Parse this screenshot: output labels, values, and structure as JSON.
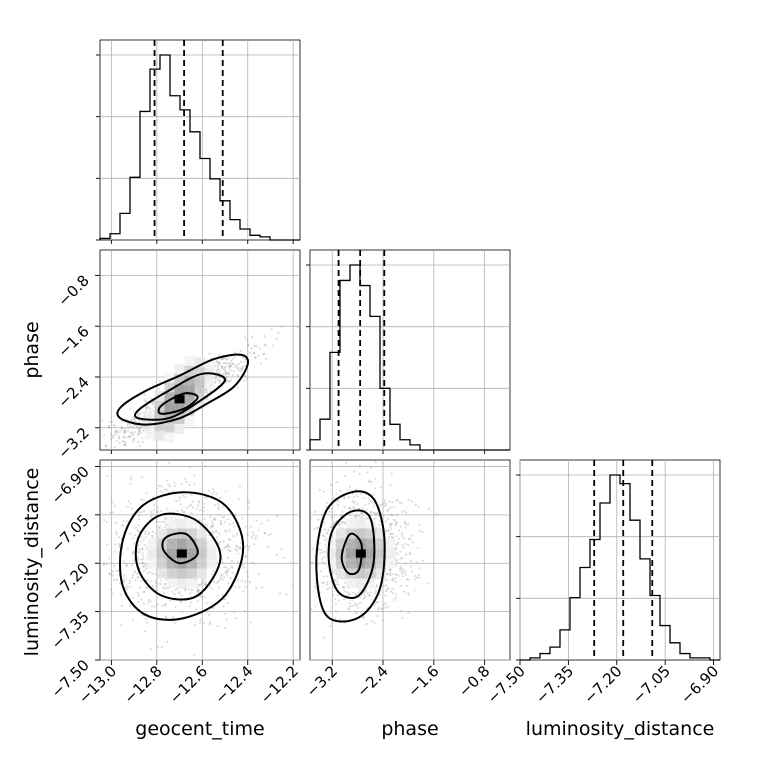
{
  "chart_data": {
    "type": "corner",
    "parameters": [
      "geocent_time",
      "phase",
      "luminosity_distance"
    ],
    "diagonal": [
      {
        "parameter": "geocent_time",
        "range": [
          -13.05,
          -12.17
        ],
        "bin_edges": [
          -13.05,
          -13.006,
          -12.962,
          -12.918,
          -12.874,
          -12.83,
          -12.786,
          -12.742,
          -12.698,
          -12.654,
          -12.61,
          -12.566,
          -12.522,
          -12.478,
          -12.434,
          -12.39,
          -12.346,
          -12.302,
          -12.258,
          -12.214,
          -12.17
        ],
        "counts": [
          1,
          4,
          17,
          40,
          82,
          109,
          118,
          92,
          83,
          69,
          52,
          39,
          25,
          13,
          7,
          3,
          2,
          0,
          0,
          0
        ],
        "quantiles": [
          -12.81,
          -12.68,
          -12.51
        ]
      },
      {
        "parameter": "phase",
        "range": [
          -3.55,
          -0.4
        ],
        "bin_edges": [
          -3.55,
          -3.3925,
          -3.235,
          -3.0775,
          -2.92,
          -2.7625,
          -2.605,
          -2.4475,
          -2.29,
          -2.1325,
          -1.975,
          -1.8175,
          -1.66,
          -1.5025,
          -1.345,
          -1.1875,
          -1.03,
          -0.8725,
          -0.715,
          -0.5575,
          -0.4
        ],
        "counts": [
          2,
          6,
          19,
          33,
          36,
          32,
          26,
          12,
          5,
          2,
          1,
          0,
          0,
          0,
          0,
          0,
          0,
          0,
          0,
          0
        ],
        "quantiles": [
          -3.1,
          -2.76,
          -2.38
        ]
      },
      {
        "parameter": "luminosity_distance",
        "range": [
          -7.5,
          -6.88
        ],
        "bin_edges": [
          -7.5,
          -7.469,
          -7.438,
          -7.407,
          -7.376,
          -7.345,
          -7.314,
          -7.283,
          -7.252,
          -7.221,
          -7.19,
          -7.159,
          -7.128,
          -7.097,
          -7.066,
          -7.035,
          -7.004,
          -6.973,
          -6.942,
          -6.911,
          -6.88
        ],
        "counts": [
          0,
          1,
          3,
          6,
          14,
          29,
          43,
          56,
          73,
          86,
          82,
          65,
          47,
          30,
          16,
          8,
          3,
          1,
          1,
          0
        ],
        "quantiles": [
          -7.27,
          -7.18,
          -7.09
        ]
      }
    ],
    "panels_2d": [
      {
        "x": "geocent_time",
        "y": "phase",
        "xlim": [
          -13.05,
          -12.17
        ],
        "ylim": [
          -3.55,
          -0.4
        ],
        "correlation": 0.93,
        "core": [
          -12.7,
          -2.75
        ],
        "contours": [
          [
            [
              -12.96,
              -3.05
            ],
            [
              -12.85,
              -3.15
            ],
            [
              -12.7,
              -3.05
            ],
            [
              -12.58,
              -2.82
            ],
            [
              -12.46,
              -2.55
            ],
            [
              -12.4,
              -2.2
            ],
            [
              -12.43,
              -2.05
            ],
            [
              -12.55,
              -2.12
            ],
            [
              -12.7,
              -2.38
            ],
            [
              -12.85,
              -2.62
            ],
            [
              -12.96,
              -2.88
            ]
          ],
          [
            [
              -12.88,
              -3.05
            ],
            [
              -12.75,
              -3.05
            ],
            [
              -12.62,
              -2.8
            ],
            [
              -12.5,
              -2.45
            ],
            [
              -12.6,
              -2.35
            ],
            [
              -12.75,
              -2.62
            ],
            [
              -12.88,
              -2.92
            ]
          ],
          [
            [
              -12.78,
              -2.98
            ],
            [
              -12.68,
              -2.9
            ],
            [
              -12.62,
              -2.72
            ],
            [
              -12.68,
              -2.66
            ],
            [
              -12.78,
              -2.85
            ]
          ]
        ]
      },
      {
        "x": "geocent_time",
        "y": "luminosity_distance",
        "xlim": [
          -13.05,
          -12.17
        ],
        "ylim": [
          -7.5,
          -6.88
        ],
        "correlation": 0.0,
        "core": [
          -12.69,
          -7.17
        ],
        "contours": [
          [
            [
              -12.95,
              -7.27
            ],
            [
              -12.85,
              -7.36
            ],
            [
              -12.68,
              -7.37
            ],
            [
              -12.5,
              -7.3
            ],
            [
              -12.42,
              -7.15
            ],
            [
              -12.5,
              -7.02
            ],
            [
              -12.68,
              -6.98
            ],
            [
              -12.86,
              -7.02
            ],
            [
              -12.95,
              -7.13
            ]
          ],
          [
            [
              -12.88,
              -7.22
            ],
            [
              -12.78,
              -7.3
            ],
            [
              -12.62,
              -7.3
            ],
            [
              -12.52,
              -7.18
            ],
            [
              -12.62,
              -7.07
            ],
            [
              -12.78,
              -7.05
            ],
            [
              -12.88,
              -7.12
            ]
          ],
          [
            [
              -12.77,
              -7.16
            ],
            [
              -12.7,
              -7.2
            ],
            [
              -12.62,
              -7.17
            ],
            [
              -12.67,
              -7.11
            ],
            [
              -12.76,
              -7.12
            ]
          ]
        ]
      },
      {
        "x": "phase",
        "y": "luminosity_distance",
        "xlim": [
          -3.55,
          -0.4
        ],
        "ylim": [
          -7.5,
          -6.88
        ],
        "correlation": 0.0,
        "core": [
          -2.75,
          -7.17
        ],
        "contours": [
          [
            [
              -3.45,
              -7.2
            ],
            [
              -3.3,
              -7.36
            ],
            [
              -2.8,
              -7.37
            ],
            [
              -2.45,
              -7.28
            ],
            [
              -2.38,
              -7.12
            ],
            [
              -2.55,
              -7.0
            ],
            [
              -2.9,
              -6.98
            ],
            [
              -3.3,
              -7.04
            ]
          ],
          [
            [
              -3.25,
              -7.2
            ],
            [
              -3.1,
              -7.29
            ],
            [
              -2.78,
              -7.3
            ],
            [
              -2.55,
              -7.2
            ],
            [
              -2.6,
              -7.06
            ],
            [
              -2.9,
              -7.04
            ],
            [
              -3.2,
              -7.1
            ]
          ],
          [
            [
              -3.05,
              -7.18
            ],
            [
              -2.95,
              -7.23
            ],
            [
              -2.78,
              -7.22
            ],
            [
              -2.74,
              -7.14
            ],
            [
              -2.92,
              -7.11
            ]
          ]
        ]
      }
    ],
    "x_ticks": {
      "geocent_time": [
        "−13.0",
        "−12.8",
        "−12.6",
        "−12.4",
        "−12.2"
      ],
      "phase": [
        "−3.2",
        "−2.4",
        "−1.6",
        "−0.8"
      ],
      "luminosity_distance": [
        "−7.50",
        "−7.35",
        "−7.20",
        "−7.05",
        "−6.90"
      ]
    },
    "y_ticks": {
      "phase": [
        "−0.8",
        "−1.6",
        "−2.4",
        "−3.2"
      ],
      "luminosity_distance": [
        "−6.90",
        "−7.05",
        "−7.20",
        "−7.35",
        "−7.50"
      ]
    },
    "x_tick_values": {
      "geocent_time": [
        -13.0,
        -12.8,
        -12.6,
        -12.4,
        -12.2
      ],
      "phase": [
        -3.2,
        -2.4,
        -1.6,
        -0.8
      ],
      "luminosity_distance": [
        -7.5,
        -7.35,
        -7.2,
        -7.05,
        -6.9
      ]
    },
    "y_tick_values": {
      "phase": [
        -0.8,
        -1.6,
        -2.4,
        -3.2
      ],
      "luminosity_distance": [
        -6.9,
        -7.05,
        -7.2,
        -7.35,
        -7.5
      ]
    },
    "xlabels": [
      "geocent_time",
      "phase",
      "luminosity_distance"
    ],
    "ylabels": [
      "phase",
      "luminosity_distance"
    ],
    "grid": true
  }
}
